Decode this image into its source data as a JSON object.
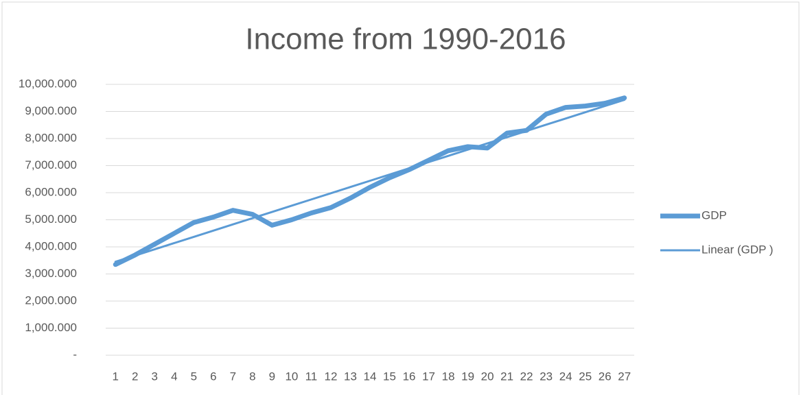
{
  "chart_data": {
    "type": "line",
    "title": "Income from 1990-2016",
    "categories": [
      "1",
      "2",
      "3",
      "4",
      "5",
      "6",
      "7",
      "8",
      "9",
      "10",
      "11",
      "12",
      "13",
      "14",
      "15",
      "16",
      "17",
      "18",
      "19",
      "20",
      "21",
      "22",
      "23",
      "24",
      "25",
      "26",
      "27"
    ],
    "series": [
      {
        "name": "GDP",
        "color": "#5b9bd5",
        "values": [
          3350,
          3700,
          4100,
          4500,
          4900,
          5100,
          5350,
          5200,
          4800,
          5000,
          5250,
          5450,
          5800,
          6200,
          6550,
          6850,
          7200,
          7550,
          7700,
          7650,
          8200,
          8300,
          8900,
          9150,
          9200,
          9300,
          9500
        ]
      },
      {
        "name": "Linear (GDP )",
        "color": "#5b9bd5",
        "values": [
          3450,
          3680,
          3910,
          4140,
          4370,
          4600,
          4830,
          5060,
          5290,
          5520,
          5750,
          5980,
          6210,
          6440,
          6670,
          6900,
          7130,
          7360,
          7590,
          7820,
          8050,
          8280,
          8510,
          8740,
          8970,
          9200,
          9430
        ]
      }
    ],
    "ylim": [
      0,
      10000
    ],
    "yticks": [
      {
        "value": 0,
        "label": "-"
      },
      {
        "value": 1000,
        "label": "1,000.000"
      },
      {
        "value": 2000,
        "label": "2,000.000"
      },
      {
        "value": 3000,
        "label": "3,000.000"
      },
      {
        "value": 4000,
        "label": "4,000.000"
      },
      {
        "value": 5000,
        "label": "5,000.000"
      },
      {
        "value": 6000,
        "label": "6,000.000"
      },
      {
        "value": 7000,
        "label": "7,000.000"
      },
      {
        "value": 8000,
        "label": "8,000.000"
      },
      {
        "value": 9000,
        "label": "9,000.000"
      },
      {
        "value": 10000,
        "label": "10,000.000"
      }
    ],
    "grid": true,
    "legend": "right"
  }
}
